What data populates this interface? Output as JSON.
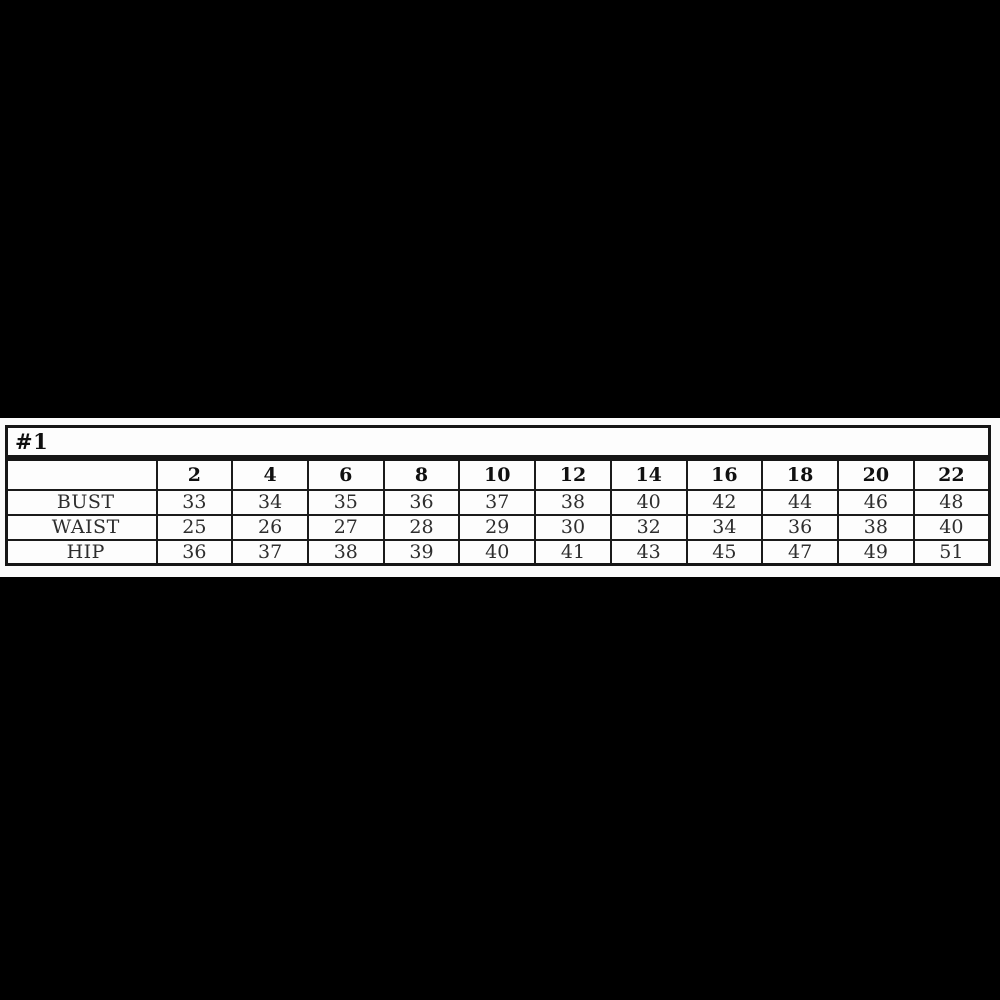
{
  "page": {
    "background_color": "#000000",
    "band_color": "#fbfbfb",
    "border_color": "#161616"
  },
  "size_chart": {
    "title": "#1",
    "corner_label": "",
    "columns": [
      "2",
      "4",
      "6",
      "8",
      "10",
      "12",
      "14",
      "16",
      "18",
      "20",
      "22"
    ],
    "rows": [
      {
        "label": "BUST",
        "values": [
          "33",
          "34",
          "35",
          "36",
          "37",
          "38",
          "40",
          "42",
          "44",
          "46",
          "48"
        ]
      },
      {
        "label": "WAIST",
        "values": [
          "25",
          "26",
          "27",
          "28",
          "29",
          "30",
          "32",
          "34",
          "36",
          "38",
          "40"
        ]
      },
      {
        "label": "HIP",
        "values": [
          "36",
          "37",
          "38",
          "39",
          "40",
          "41",
          "43",
          "45",
          "47",
          "49",
          "51"
        ]
      }
    ]
  }
}
